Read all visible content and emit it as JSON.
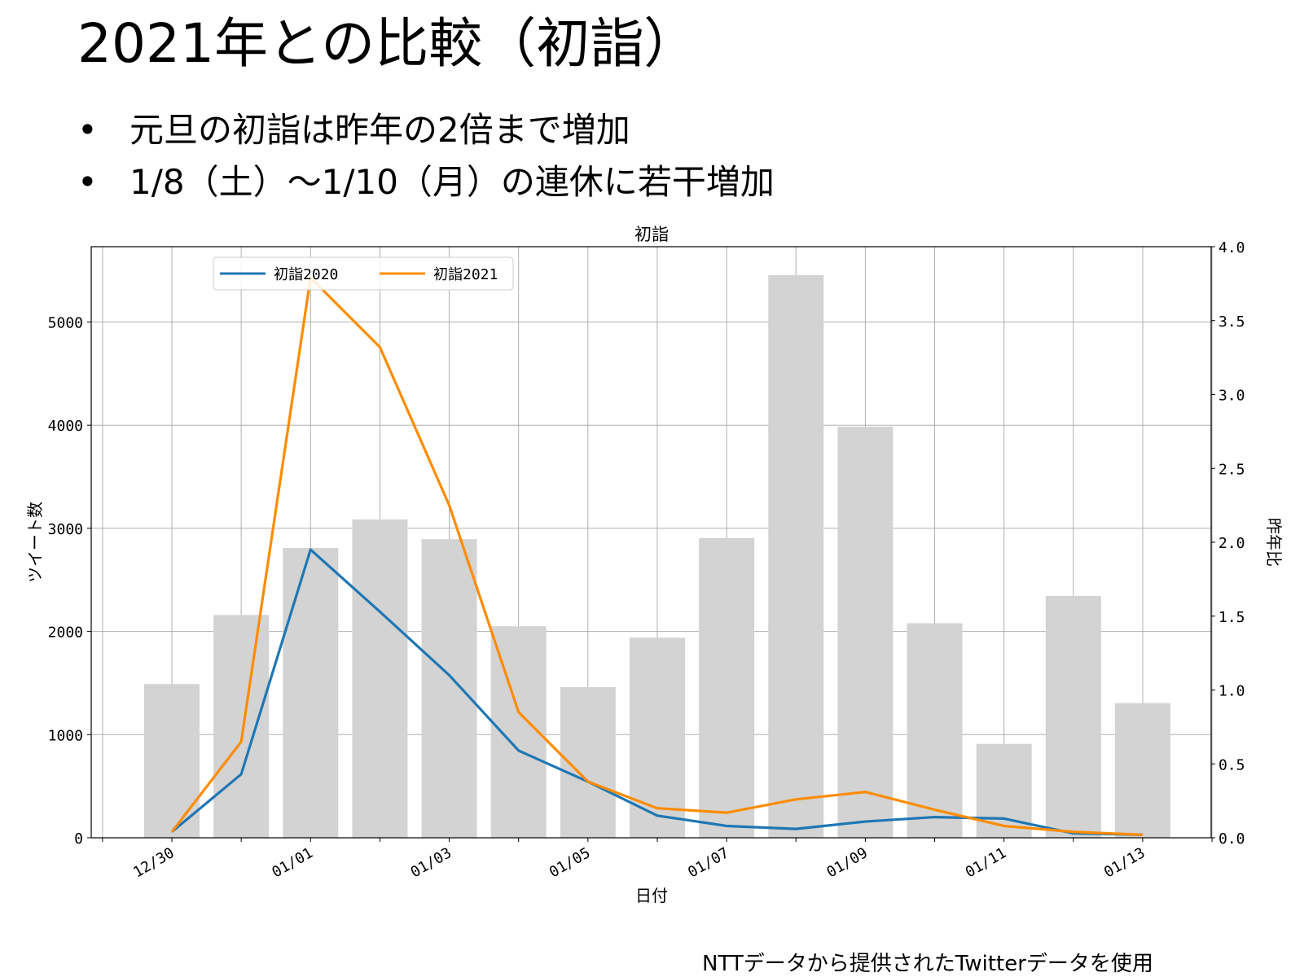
{
  "slide": {
    "title": "2021年との比較（初詣）",
    "bullets": [
      "元旦の初詣は昨年の2倍まで増加",
      "1/8（土）～1/10（月）の連休に若干増加"
    ],
    "bullet_symbol": "•",
    "source_note": "NTTデータから提供されたTwitterデータを使用"
  },
  "chart_data": {
    "type": "bar+line",
    "title": "初詣",
    "xlabel": "日付",
    "ylabel_left": "ツイート数",
    "ylabel_right": "昨年比",
    "categories": [
      "12/30",
      "12/31",
      "01/01",
      "01/02",
      "01/03",
      "01/04",
      "01/05",
      "01/06",
      "01/07",
      "01/08",
      "01/09",
      "01/10",
      "01/11",
      "01/12",
      "01/13"
    ],
    "xtick_labels": [
      "12/30",
      "01/01",
      "01/03",
      "01/05",
      "01/07",
      "01/09",
      "01/11",
      "01/13"
    ],
    "yticks_left": [
      0,
      1000,
      2000,
      3000,
      4000,
      5000
    ],
    "yticks_right": [
      "0.0",
      "0.5",
      "1.0",
      "1.5",
      "2.0",
      "2.5",
      "3.0",
      "3.5",
      "4.0"
    ],
    "ylim_left": [
      0,
      5730
    ],
    "ylim_right": [
      0,
      4.0
    ],
    "grid": true,
    "legend_position": "top-left",
    "bars": {
      "axis": "left",
      "color": "#d3d3d3",
      "values": [
        1490,
        2160,
        2810,
        3085,
        2895,
        2050,
        1460,
        1940,
        2905,
        5455,
        3985,
        2080,
        910,
        2345,
        1305
      ]
    },
    "series": [
      {
        "name": "初詣2020",
        "axis": "right",
        "color": "#1f77b4",
        "values": [
          0.04,
          0.43,
          1.95,
          1.53,
          1.1,
          0.59,
          0.38,
          0.15,
          0.08,
          0.06,
          0.11,
          0.14,
          0.13,
          0.03,
          0.02
        ]
      },
      {
        "name": "初詣2021",
        "axis": "right",
        "color": "#ff8c00",
        "values": [
          0.04,
          0.65,
          3.79,
          3.32,
          2.25,
          0.85,
          0.38,
          0.2,
          0.17,
          0.26,
          0.31,
          0.19,
          0.08,
          0.04,
          0.02
        ]
      }
    ]
  }
}
